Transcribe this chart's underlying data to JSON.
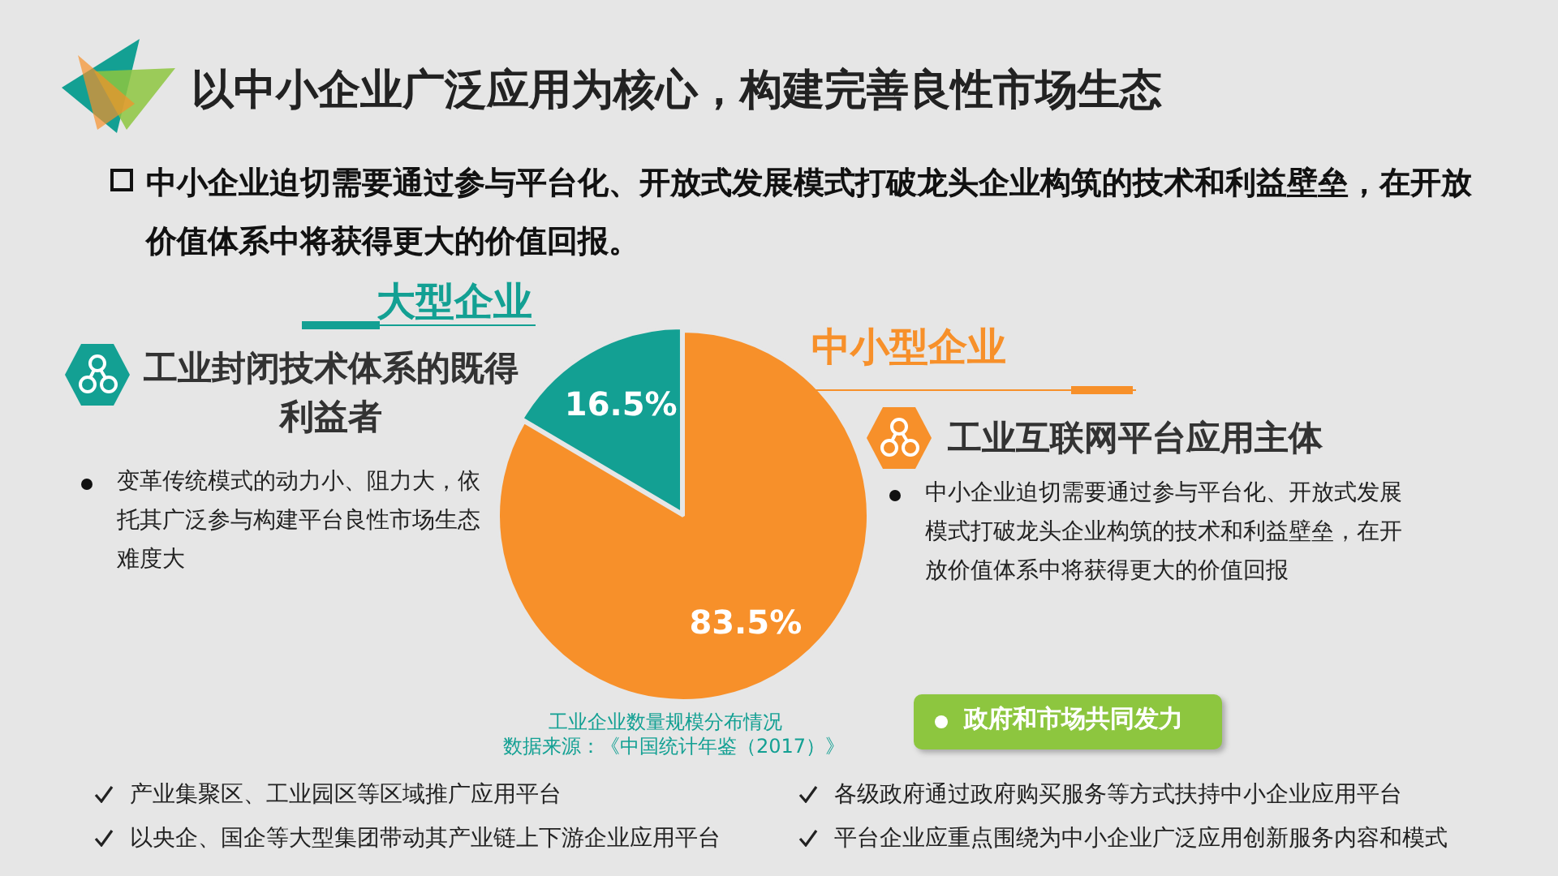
{
  "chart_data": {
    "type": "pie",
    "title": "以中小企业广泛应用为核心，构建完善良性市场生态",
    "subtitle": "中小企业迫切需要通过参与平台化、开放式发展模式打破龙头企业构筑的技术和利益壁垒，在开放价值体系中将获得更大的价值回报。",
    "categories": [
      "中小型企业",
      "大型企业"
    ],
    "values": [
      83.5,
      16.5
    ],
    "colors": [
      "#f7902a",
      "#13a093"
    ],
    "value_labels": [
      "83.5%",
      "16.5%"
    ],
    "annotations": [
      "工业封闭技术体系的既得利益者",
      "变革传统模式的动力小、阻力大，依托其广泛参与构建平台良性市场生态难度大",
      "工业互联网平台应用主体",
      "中小企业迫切需要通过参与平台化、开放式发展模式打破龙头企业构筑的技术和利益壁垒，在开放价值体系中将获得更大的价值回报",
      "工业企业数量规模分布情况",
      "数据来源：《中国统计年鉴（2017）》",
      "政府和市场共同发力",
      "产业集聚区、工业园区等区域推广应用平台",
      "以央企、国企等大型集团带动其产业链上下游企业应用平台",
      "各级政府通过政府购买服务等方式扶持中小企业应用平台",
      "平台企业应重点围绕为中小企业广泛应用创新服务内容和模式"
    ]
  }
}
